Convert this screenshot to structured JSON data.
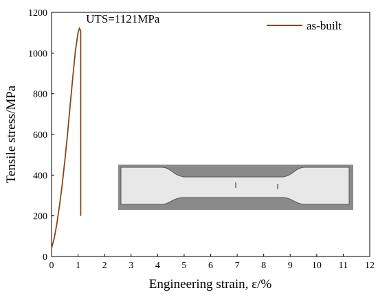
{
  "chart_data": {
    "type": "line",
    "xlabel": "Engineering strain, ε/%",
    "ylabel": "Tensile stress/MPa",
    "xlim": [
      0,
      12
    ],
    "ylim": [
      0,
      1200
    ],
    "x_ticks": [
      0,
      1,
      2,
      3,
      4,
      5,
      6,
      7,
      8,
      9,
      10,
      11,
      12
    ],
    "y_ticks": [
      0,
      200,
      400,
      600,
      800,
      1000,
      1200
    ],
    "grid": false,
    "legend_position": "top-right",
    "series": [
      {
        "name": "as-built",
        "color": "#8b4513",
        "x": [
          0.0,
          0.1,
          0.2,
          0.3,
          0.4,
          0.5,
          0.6,
          0.7,
          0.8,
          0.9,
          1.0,
          1.05,
          1.1,
          1.1,
          1.1
        ],
        "y": [
          40,
          90,
          160,
          250,
          350,
          470,
          600,
          740,
          880,
          1010,
          1100,
          1121,
          1110,
          600,
          200
        ]
      }
    ],
    "annotations": [
      {
        "text": "UTS=1121MPa",
        "x": 1.3,
        "y": 1150
      }
    ]
  },
  "inset": {
    "kind": "photo-of-tensile-specimen"
  }
}
